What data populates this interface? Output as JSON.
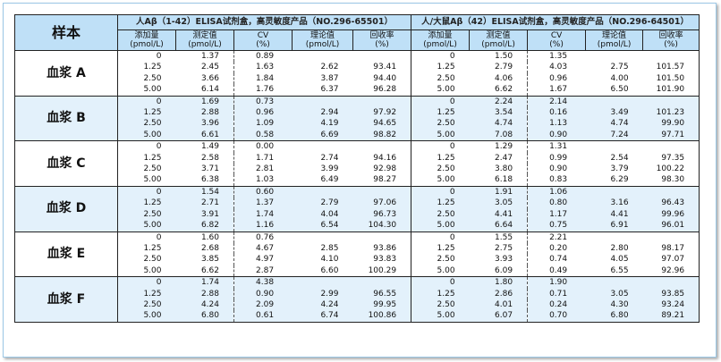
{
  "table": {
    "corner": "样本",
    "groups": [
      "人Aβ（1-42）ELISA试剂盒，高灵敏度产品（NO.296-65501）",
      "人/大鼠Aβ（42）ELISA试剂盒，高灵敏度产品（NO.296-64501）"
    ],
    "columns": [
      {
        "name": "添加量",
        "unit": "(pmol/L)"
      },
      {
        "name": "测定值",
        "unit": "(pmol/L)"
      },
      {
        "name": "CV",
        "unit": "(%)"
      },
      {
        "name": "理论值",
        "unit": "(pmol/L)"
      },
      {
        "name": "回收率",
        "unit": "(%)"
      }
    ],
    "samples": [
      {
        "name": "血浆 A",
        "rows": [
          [
            "0",
            "1.37",
            "0.89",
            null,
            null,
            "0",
            "1.50",
            "1.35",
            null,
            null
          ],
          [
            "1.25",
            "2.45",
            "1.63",
            "2.62",
            "93.41",
            "1.25",
            "2.79",
            "4.03",
            "2.75",
            "101.57"
          ],
          [
            "2.50",
            "3.66",
            "1.84",
            "3.87",
            "94.40",
            "2.50",
            "4.06",
            "0.96",
            "4.00",
            "101.50"
          ],
          [
            "5.00",
            "6.14",
            "1.76",
            "6.37",
            "96.28",
            "5.00",
            "6.62",
            "1.67",
            "6.50",
            "101.90"
          ]
        ]
      },
      {
        "name": "血浆 B",
        "rows": [
          [
            "0",
            "1.69",
            "0.73",
            null,
            null,
            "0",
            "2.24",
            "2.14",
            null,
            null
          ],
          [
            "1.25",
            "2.88",
            "0.96",
            "2.94",
            "97.92",
            "1.25",
            "3.54",
            "0.16",
            "3.49",
            "101.23"
          ],
          [
            "2.50",
            "3.96",
            "1.09",
            "4.19",
            "94.65",
            "2.50",
            "4.74",
            "1.13",
            "4.74",
            "99.90"
          ],
          [
            "5.00",
            "6.61",
            "0.58",
            "6.69",
            "98.82",
            "5.00",
            "7.08",
            "0.90",
            "7.24",
            "97.71"
          ]
        ]
      },
      {
        "name": "血浆 C",
        "rows": [
          [
            "0",
            "1.49",
            "0.00",
            null,
            null,
            "0",
            "1.29",
            "1.31",
            null,
            null
          ],
          [
            "1.25",
            "2.58",
            "1.71",
            "2.74",
            "94.16",
            "1.25",
            "2.47",
            "0.99",
            "2.54",
            "97.35"
          ],
          [
            "2.50",
            "3.71",
            "2.81",
            "3.99",
            "92.98",
            "2.50",
            "3.80",
            "0.90",
            "3.79",
            "100.22"
          ],
          [
            "5.00",
            "6.38",
            "1.03",
            "6.49",
            "98.27",
            "5.00",
            "6.18",
            "0.83",
            "6.29",
            "98.30"
          ]
        ]
      },
      {
        "name": "血浆 D",
        "rows": [
          [
            "0",
            "1.54",
            "0.60",
            null,
            null,
            "0",
            "1.91",
            "1.06",
            null,
            null
          ],
          [
            "1.25",
            "2.71",
            "1.37",
            "2.79",
            "97.06",
            "1.25",
            "3.05",
            "0.80",
            "3.16",
            "96.43"
          ],
          [
            "2.50",
            "3.91",
            "1.74",
            "4.04",
            "96.73",
            "2.50",
            "4.41",
            "1.17",
            "4.41",
            "99.96"
          ],
          [
            "5.00",
            "6.82",
            "1.16",
            "6.54",
            "104.30",
            "5.00",
            "6.64",
            "0.75",
            "6.91",
            "96.01"
          ]
        ]
      },
      {
        "name": "血浆 E",
        "rows": [
          [
            "0",
            "1.60",
            "0.76",
            null,
            null,
            "0",
            "1.55",
            "2.21",
            null,
            null
          ],
          [
            "1.25",
            "2.68",
            "4.67",
            "2.85",
            "93.86",
            "1.25",
            "2.75",
            "0.20",
            "2.80",
            "98.17"
          ],
          [
            "2.50",
            "3.85",
            "4.97",
            "4.10",
            "93.83",
            "2.50",
            "3.93",
            "0.74",
            "4.05",
            "97.07"
          ],
          [
            "5.00",
            "6.62",
            "2.87",
            "6.60",
            "100.29",
            "5.00",
            "6.09",
            "0.49",
            "6.55",
            "92.96"
          ]
        ]
      },
      {
        "name": "血浆 F",
        "rows": [
          [
            "0",
            "1.74",
            "4.38",
            null,
            null,
            "0",
            "1.80",
            "1.90",
            null,
            null
          ],
          [
            "1.25",
            "2.88",
            "0.90",
            "2.99",
            "96.55",
            "1.25",
            "2.86",
            "0.71",
            "3.05",
            "93.85"
          ],
          [
            "2.50",
            "4.24",
            "2.09",
            "4.24",
            "99.95",
            "2.50",
            "4.01",
            "0.24",
            "4.30",
            "93.24"
          ],
          [
            "5.00",
            "6.80",
            "0.61",
            "6.74",
            "100.86",
            "5.00",
            "6.07",
            "0.70",
            "6.80",
            "89.21"
          ]
        ]
      }
    ]
  }
}
